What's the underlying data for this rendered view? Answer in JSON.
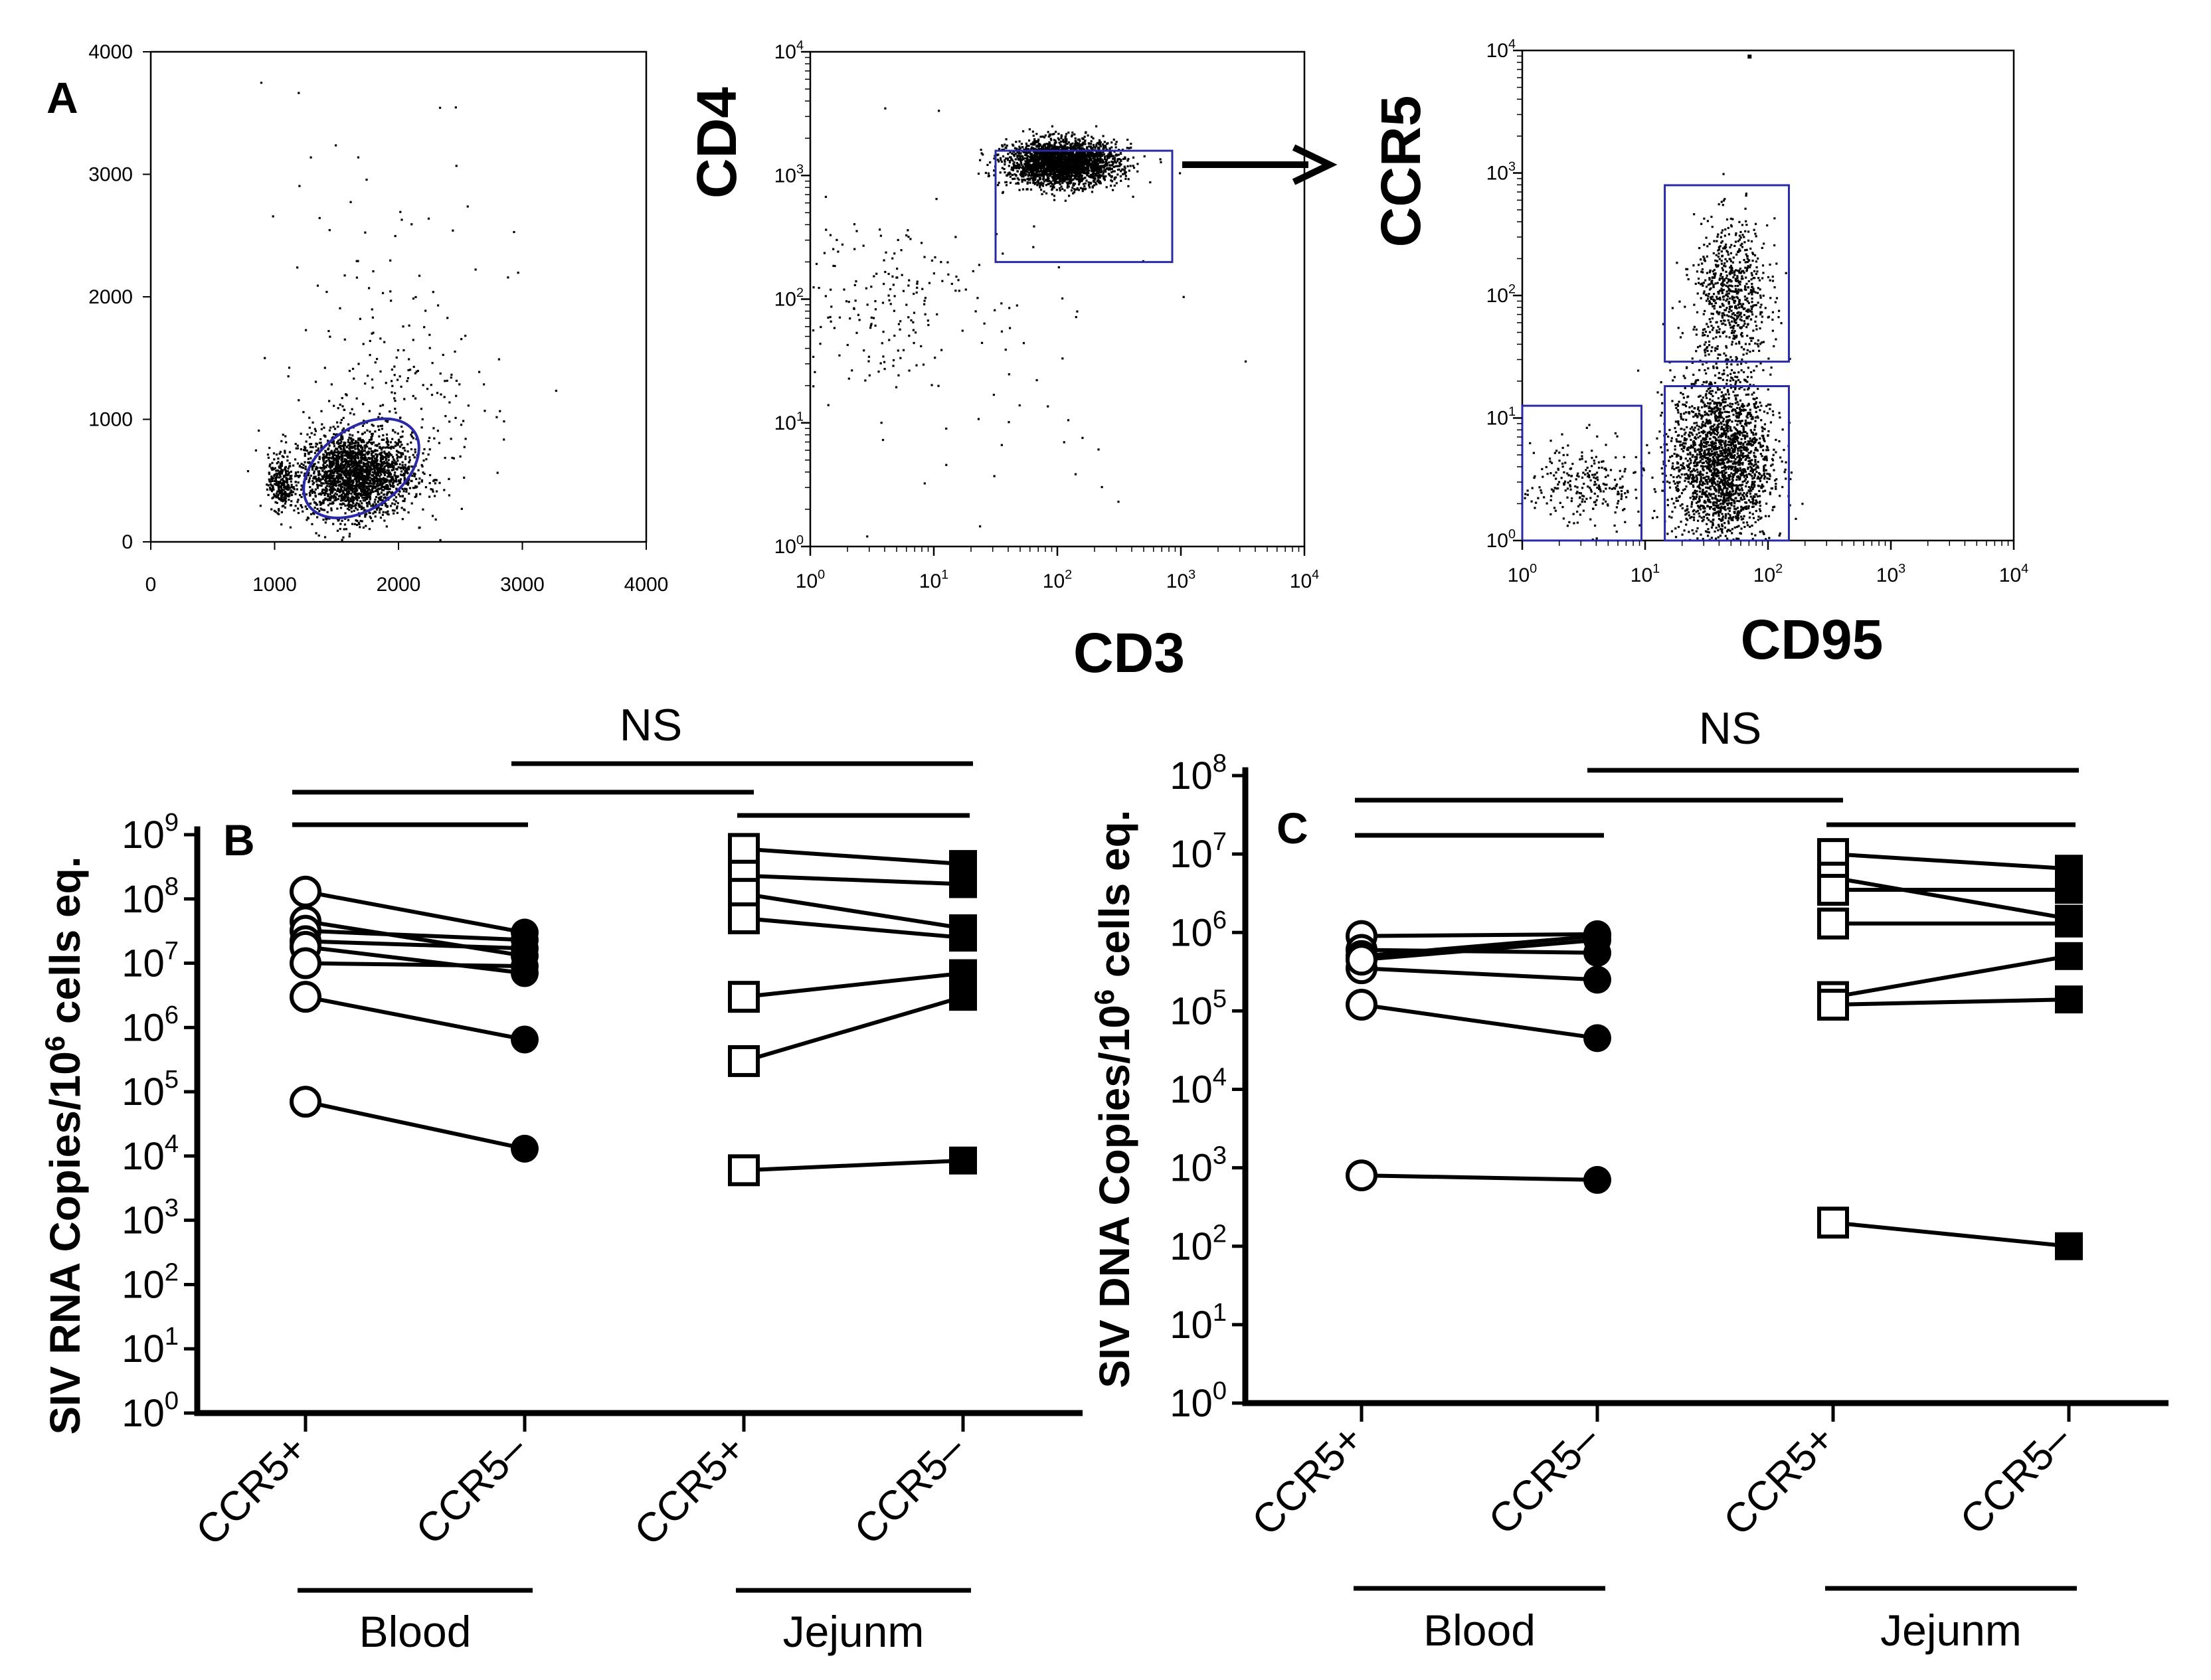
{
  "panel_labels": {
    "a": "A",
    "b": "B",
    "c": "C"
  },
  "colors": {
    "gate": "#2a2aa8",
    "ink": "#000000"
  },
  "chart_data": [
    {
      "id": "A1",
      "type": "scatter",
      "title": "",
      "xlabel": "",
      "ylabel": "",
      "xlim": [
        0,
        4000
      ],
      "ylim": [
        0,
        4000
      ],
      "xticks": [
        "0",
        "1000",
        "2000",
        "3000",
        "4000"
      ],
      "yticks": [
        "0",
        "1000",
        "2000",
        "3000",
        "4000"
      ],
      "gate": {
        "shape": "ellipse",
        "center": [
          1700,
          600
        ],
        "radius": [
          520,
          330
        ],
        "angle_deg": -35
      },
      "populations": [
        {
          "cx": 1650,
          "cy": 550,
          "sx": 230,
          "sy": 170,
          "n": 2200
        },
        {
          "cx": 1050,
          "cy": 480,
          "sx": 50,
          "sy": 110,
          "n": 260
        },
        {
          "cx": 1950,
          "cy": 1100,
          "sx": 350,
          "sy": 450,
          "n": 220
        },
        {
          "cx": 2000,
          "cy": 2200,
          "sx": 550,
          "sy": 700,
          "n": 50
        }
      ]
    },
    {
      "id": "A2",
      "type": "scatter",
      "title": "",
      "xlabel": "CD3",
      "ylabel": "CD4",
      "xlim_log10": [
        0,
        4
      ],
      "ylim_log10": [
        0,
        4
      ],
      "ticks": [
        "10^0",
        "10^1",
        "10^2",
        "10^3",
        "10^4"
      ],
      "gate": {
        "shape": "rect",
        "x_log10": [
          1.5,
          2.93
        ],
        "y_log10": [
          2.3,
          3.2
        ]
      },
      "populations": [
        {
          "cx": 2.05,
          "cy": 3.1,
          "sx": 0.22,
          "sy": 0.09,
          "n": 2600
        },
        {
          "cx": 0.55,
          "cy": 2.0,
          "sx": 0.38,
          "sy": 0.35,
          "n": 170
        },
        {
          "cx": 1.2,
          "cy": 1.5,
          "sx": 0.9,
          "sy": 0.9,
          "n": 60
        }
      ]
    },
    {
      "id": "A3",
      "type": "scatter",
      "title": "",
      "xlabel": "CD95",
      "ylabel": "CCR5",
      "xlim_log10": [
        0,
        4
      ],
      "ylim_log10": [
        0,
        4
      ],
      "ticks": [
        "10^0",
        "10^1",
        "10^2",
        "10^3",
        "10^4"
      ],
      "gates": [
        {
          "shape": "rect",
          "x_log10": [
            0.0,
            0.97
          ],
          "y_log10": [
            0.0,
            1.1
          ]
        },
        {
          "shape": "rect",
          "x_log10": [
            1.16,
            2.17
          ],
          "y_log10": [
            1.46,
            2.9
          ]
        },
        {
          "shape": "rect",
          "x_log10": [
            1.16,
            2.17
          ],
          "y_log10": [
            0.0,
            1.26
          ]
        }
      ],
      "populations": [
        {
          "cx": 1.62,
          "cy": 0.65,
          "sx": 0.2,
          "sy": 0.35,
          "n": 2200
        },
        {
          "cx": 1.7,
          "cy": 2.0,
          "sx": 0.15,
          "sy": 0.3,
          "n": 700
        },
        {
          "cx": 0.5,
          "cy": 0.45,
          "sx": 0.25,
          "sy": 0.18,
          "n": 260
        }
      ]
    },
    {
      "id": "B",
      "type": "line",
      "title": "",
      "ylabel": "SIV RNA Copies/10^6 cells eq.",
      "ylabel_parts": [
        "SIV RNA Copies/10",
        "6",
        " cells eq."
      ],
      "yscale": "log",
      "ylim_log10": [
        0,
        9
      ],
      "yticks": [
        "0",
        "1",
        "2",
        "3",
        "4",
        "5",
        "6",
        "7",
        "8",
        "9"
      ],
      "categories": [
        "CCR5+",
        "CCR5–",
        "CCR5+",
        "CCR5–"
      ],
      "groups": [
        {
          "label": "Blood",
          "span": [
            0,
            1
          ]
        },
        {
          "label": "Jejunm",
          "span": [
            2,
            3
          ]
        }
      ],
      "significance": {
        "label": "NS"
      },
      "blood": [
        [
          130000000.0,
          30000000.0
        ],
        [
          45000000.0,
          13000000.0
        ],
        [
          32000000.0,
          23000000.0
        ],
        [
          22000000.0,
          17000000.0
        ],
        [
          18000000.0,
          7000000.0
        ],
        [
          10000000.0,
          9000000.0
        ],
        [
          3000000.0,
          650000.0
        ],
        [
          70000.0,
          13000.0
        ]
      ],
      "jejunum": [
        [
          600000000.0,
          350000000.0
        ],
        [
          230000000.0,
          170000000.0
        ],
        [
          120000000.0,
          35000000.0
        ],
        [
          50000000.0,
          25000000.0
        ],
        [
          3000000.0,
          7000000.0
        ],
        [
          300000.0,
          3000000.0
        ],
        [
          6000.0,
          8500.0
        ]
      ]
    },
    {
      "id": "C",
      "type": "line",
      "title": "",
      "ylabel": "SIV DNA Copies/10^6 cells eq.",
      "ylabel_parts": [
        "SIV DNA Copies/10",
        "6",
        " cells eq."
      ],
      "yscale": "log",
      "ylim_log10": [
        0,
        8
      ],
      "yticks": [
        "0",
        "1",
        "2",
        "3",
        "4",
        "5",
        "6",
        "7",
        "8"
      ],
      "categories": [
        "CCR5+",
        "CCR5–",
        "CCR5+",
        "CCR5–"
      ],
      "groups": [
        {
          "label": "Blood",
          "span": [
            0,
            1
          ]
        },
        {
          "label": "Jejunm",
          "span": [
            2,
            3
          ]
        }
      ],
      "significance": {
        "label": "NS"
      },
      "blood": [
        [
          900000.0,
          950000.0
        ],
        [
          600000.0,
          550000.0
        ],
        [
          500000.0,
          900000.0
        ],
        [
          350000.0,
          250000.0
        ],
        [
          450000.0,
          800000.0
        ],
        [
          120000.0,
          45000.0
        ],
        [
          800.0,
          700.0
        ]
      ],
      "jejunum": [
        [
          10000000.0,
          6500000.0
        ],
        [
          5000000.0,
          1500000.0
        ],
        [
          3500000.0,
          3500000.0
        ],
        [
          1300000.0,
          1300000.0
        ],
        [
          150000.0,
          500000.0
        ],
        [
          120000.0,
          140000.0
        ],
        [
          200.0,
          100.0
        ]
      ]
    }
  ]
}
